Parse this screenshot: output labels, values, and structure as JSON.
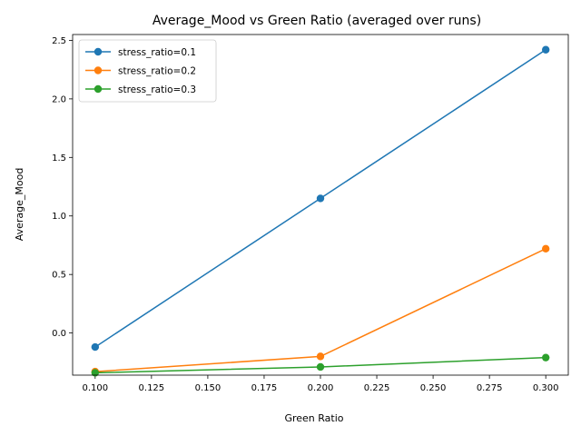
{
  "chart_data": {
    "type": "line",
    "title": "Average_Mood vs Green Ratio (averaged over runs)",
    "xlabel": "Green Ratio",
    "ylabel": "Average_Mood",
    "x": [
      0.1,
      0.2,
      0.3
    ],
    "xlim": [
      0.09,
      0.31
    ],
    "ylim": [
      -0.36,
      2.55
    ],
    "xticks": [
      "0.100",
      "0.125",
      "0.150",
      "0.175",
      "0.200",
      "0.225",
      "0.250",
      "0.275",
      "0.300"
    ],
    "yticks": [
      "0.0",
      "0.5",
      "1.0",
      "1.5",
      "2.0",
      "2.5"
    ],
    "grid": false,
    "legend_position": "top-left",
    "markers": "circle",
    "series": [
      {
        "name": "stress_ratio=0.1",
        "color": "#1f77b4",
        "values": [
          -0.12,
          1.15,
          2.42
        ]
      },
      {
        "name": "stress_ratio=0.2",
        "color": "#ff7f0e",
        "values": [
          -0.33,
          -0.2,
          0.72
        ]
      },
      {
        "name": "stress_ratio=0.3",
        "color": "#2ca02c",
        "values": [
          -0.34,
          -0.29,
          -0.21
        ]
      }
    ]
  }
}
